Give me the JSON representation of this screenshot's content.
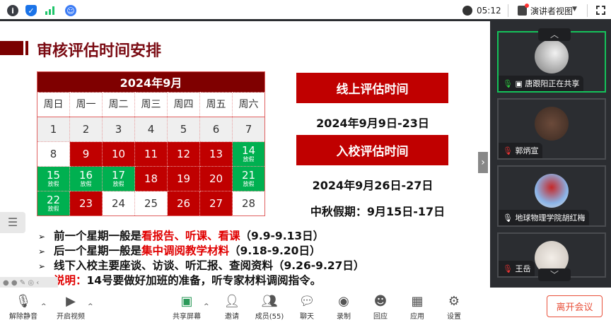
{
  "topbar": {
    "icons": [
      "info-icon",
      "shield-check-icon",
      "signal-icon",
      "assistant-icon"
    ],
    "time": "05:12",
    "view_label": "演讲者视图"
  },
  "slide": {
    "title": "审核评估时间安排",
    "calendar": {
      "header": "2024年9月",
      "weekdays": [
        "周日",
        "周一",
        "周二",
        "周三",
        "周四",
        "周五",
        "周六"
      ],
      "rows": [
        [
          {
            "d": "1",
            "c": "gray"
          },
          {
            "d": "2",
            "c": "gray"
          },
          {
            "d": "3",
            "c": "gray"
          },
          {
            "d": "4",
            "c": "gray"
          },
          {
            "d": "5",
            "c": "gray"
          },
          {
            "d": "6",
            "c": "gray"
          },
          {
            "d": "7",
            "c": "gray"
          }
        ],
        [
          {
            "d": "8",
            "c": "white"
          },
          {
            "d": "9",
            "c": "red"
          },
          {
            "d": "10",
            "c": "red"
          },
          {
            "d": "11",
            "c": "red"
          },
          {
            "d": "12",
            "c": "red"
          },
          {
            "d": "13",
            "c": "red"
          },
          {
            "d": "14",
            "c": "green",
            "n": "放假"
          }
        ],
        [
          {
            "d": "15",
            "c": "green",
            "n": "放假"
          },
          {
            "d": "16",
            "c": "green",
            "n": "放假"
          },
          {
            "d": "17",
            "c": "green",
            "n": "放假"
          },
          {
            "d": "18",
            "c": "red"
          },
          {
            "d": "19",
            "c": "red"
          },
          {
            "d": "20",
            "c": "red"
          },
          {
            "d": "21",
            "c": "green",
            "n": "放假"
          }
        ],
        [
          {
            "d": "22",
            "c": "green",
            "n": "放假"
          },
          {
            "d": "23",
            "c": "red"
          },
          {
            "d": "24",
            "c": "white"
          },
          {
            "d": "25",
            "c": "white"
          },
          {
            "d": "26",
            "c": "red"
          },
          {
            "d": "27",
            "c": "red"
          },
          {
            "d": "28",
            "c": "white"
          }
        ]
      ]
    },
    "online_label": "线上评估时间",
    "online_date": "2024年9月9日-23日",
    "onsite_label": "入校评估时间",
    "onsite_date": "2024年9月26日-27日",
    "holiday": "中秋假期：9月15日-17日",
    "bullets": [
      {
        "a": "前一个星期一般是",
        "r": "看报告、听课、看课",
        "b": "（9.9-9.13日）"
      },
      {
        "a": "后一个星期一般是",
        "r": "集中调阅教学材料",
        "b": "（9.18-9.20日）"
      },
      {
        "a": "线下入校主要座谈、访谈、听汇报、查阅资料（9.26-9.27日）",
        "r": "",
        "b": ""
      },
      {
        "a": "",
        "r": "说明：",
        "b": "14号要做好加班的准备，听专家材料调阅指令。"
      }
    ]
  },
  "participants": [
    {
      "name": "唐跟阳正在共享",
      "mic": "on",
      "active": true
    },
    {
      "name": "郭炳宣",
      "mic": "muted"
    },
    {
      "name": "地球物理学院胡红梅",
      "mic": "on"
    },
    {
      "name": "王岳",
      "mic": "muted"
    }
  ],
  "toolbar": {
    "unmute": "解除静音",
    "video": "开启视频",
    "share": "共享屏幕",
    "invite": "邀请",
    "members": "成员(55)",
    "chat": "聊天",
    "record": "录制",
    "react": "回应",
    "apps": "应用",
    "settings": "设置",
    "leave": "离开会议"
  },
  "colors": {
    "accent_red": "#c00000",
    "holiday_green": "#00b050",
    "title_red": "#7a0a12",
    "leave": "#e8503a"
  }
}
